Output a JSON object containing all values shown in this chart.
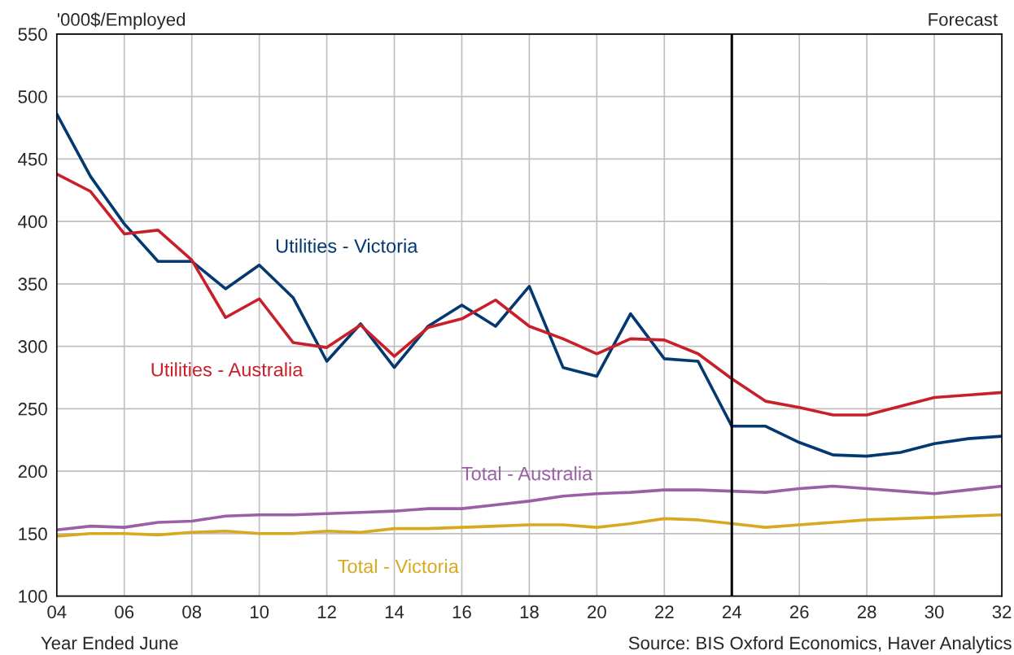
{
  "chart_data": {
    "type": "line",
    "x": [
      2004,
      2005,
      2006,
      2007,
      2008,
      2009,
      2010,
      2011,
      2012,
      2013,
      2014,
      2015,
      2016,
      2017,
      2018,
      2019,
      2020,
      2021,
      2022,
      2023,
      2024,
      2025,
      2026,
      2027,
      2028,
      2029,
      2030,
      2031,
      2032
    ],
    "series": [
      {
        "name": "Utilities - Victoria",
        "color": "#043870",
        "values": [
          486,
          436,
          398,
          368,
          368,
          346,
          365,
          339,
          288,
          318,
          283,
          316,
          333,
          316,
          348,
          283,
          276,
          326,
          290,
          288,
          236,
          236,
          223,
          213,
          212,
          215,
          222,
          226,
          228
        ]
      },
      {
        "name": "Utilities - Australia",
        "color": "#c8202a",
        "values": [
          438,
          424,
          390,
          393,
          369,
          323,
          338,
          303,
          299,
          317,
          292,
          315,
          322,
          337,
          316,
          306,
          294,
          306,
          305,
          294,
          274,
          256,
          251,
          245,
          245,
          252,
          259,
          261,
          263
        ]
      },
      {
        "name": "Total - Australia",
        "color": "#9b5fa6",
        "values": [
          153,
          156,
          155,
          159,
          160,
          164,
          165,
          165,
          166,
          167,
          168,
          170,
          170,
          173,
          176,
          180,
          182,
          183,
          185,
          185,
          184,
          183,
          186,
          188,
          186,
          184,
          182,
          185,
          188
        ]
      },
      {
        "name": "Total - Victoria",
        "color": "#d8a920",
        "values": [
          148,
          150,
          150,
          149,
          151,
          152,
          150,
          150,
          152,
          151,
          154,
          154,
          155,
          156,
          157,
          157,
          155,
          158,
          162,
          161,
          158,
          155,
          157,
          159,
          161,
          162,
          163,
          164,
          165
        ]
      }
    ],
    "ylabel": "'000$/Employed",
    "xlabel": "Year Ended June",
    "annotations": [
      "Forecast",
      "Source: BIS Oxford Economics, Haver Analytics"
    ],
    "ref_lines": [
      {
        "axis": "x",
        "value": 2024,
        "color": "#000000"
      }
    ],
    "xlim": [
      2004,
      2032
    ],
    "xticks": [
      {
        "value": 2004,
        "label": "04"
      },
      {
        "value": 2006,
        "label": "06"
      },
      {
        "value": 2008,
        "label": "08"
      },
      {
        "value": 2010,
        "label": "10"
      },
      {
        "value": 2012,
        "label": "12"
      },
      {
        "value": 2014,
        "label": "14"
      },
      {
        "value": 2016,
        "label": "16"
      },
      {
        "value": 2018,
        "label": "18"
      },
      {
        "value": 2020,
        "label": "20"
      },
      {
        "value": 2022,
        "label": "22"
      },
      {
        "value": 2024,
        "label": "24"
      },
      {
        "value": 2026,
        "label": "26"
      },
      {
        "value": 2028,
        "label": "28"
      },
      {
        "value": 2030,
        "label": "30"
      },
      {
        "value": 2032,
        "label": "32"
      }
    ],
    "ylim": [
      100,
      550
    ],
    "yticks": [
      100,
      150,
      200,
      250,
      300,
      350,
      400,
      450,
      500,
      550
    ],
    "grid": true,
    "legend": false,
    "marker": "none",
    "line_style": "solid"
  }
}
